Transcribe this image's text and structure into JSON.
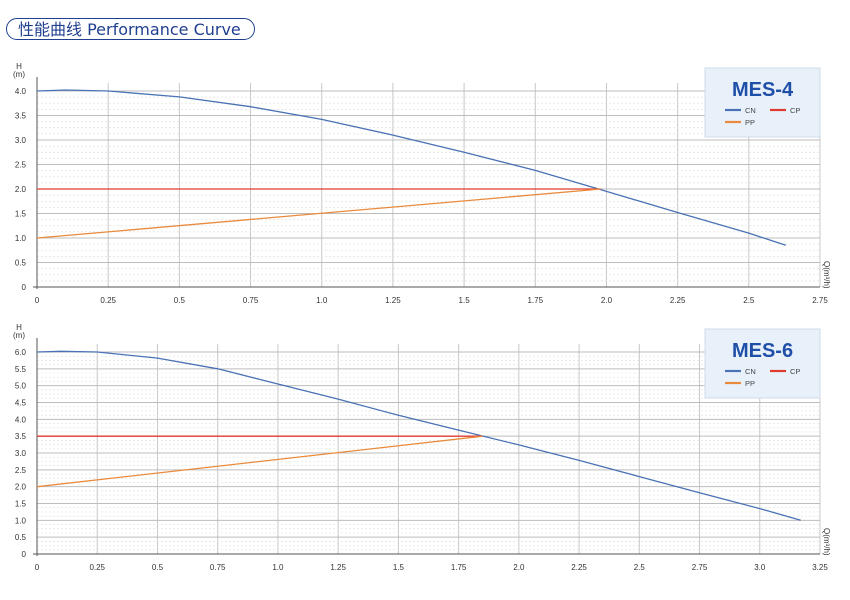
{
  "header": {
    "title": "性能曲线 Performance Curve"
  },
  "colors": {
    "cn": "#4a72b5",
    "cp": "#e03a2f",
    "pp": "#e98a3c",
    "legend_bg": "#e8f1fa",
    "title": "#1f4fa8",
    "border": "#1f3f8f"
  },
  "chart_data": [
    {
      "type": "line",
      "title": "MES-4",
      "ylabel": "H",
      "yunit": "(m)",
      "xlabel": "Q(m³/h)",
      "xlim": [
        0,
        2.75
      ],
      "ylim": [
        0,
        4.0
      ],
      "x_ticks": [
        "0",
        "0.25",
        "0.5",
        "0.75",
        "1.0",
        "1.25",
        "1.5",
        "1.75",
        "2.0",
        "2.25",
        "2.5",
        "2.75"
      ],
      "y_ticks": [
        "0",
        "0.5",
        "1.0",
        "1.5",
        "2.0",
        "2.5",
        "3.0",
        "3.5",
        "4.0"
      ],
      "grid": true,
      "legend_position": "top-right",
      "legend": [
        "CN",
        "CP",
        "PP"
      ],
      "series": [
        {
          "name": "CN",
          "x": [
            0,
            0.1,
            0.25,
            0.5,
            0.75,
            1.0,
            1.25,
            1.5,
            1.75,
            2.0,
            2.25,
            2.5,
            2.63
          ],
          "y": [
            4.0,
            4.02,
            4.0,
            3.88,
            3.68,
            3.42,
            3.1,
            2.75,
            2.38,
            1.95,
            1.52,
            1.1,
            0.85
          ]
        },
        {
          "name": "CP",
          "x": [
            0,
            1.98
          ],
          "y": [
            2.0,
            2.0
          ]
        },
        {
          "name": "PP",
          "x": [
            0,
            1.98
          ],
          "y": [
            1.0,
            2.0
          ]
        }
      ]
    },
    {
      "type": "line",
      "title": "MES-6",
      "ylabel": "H",
      "yunit": "(m)",
      "xlabel": "Q(m³/h)",
      "xlim": [
        0,
        3.25
      ],
      "ylim": [
        0,
        6.0
      ],
      "x_ticks": [
        "0",
        "0.25",
        "0.5",
        "0.75",
        "1.0",
        "1.25",
        "1.5",
        "1.75",
        "2.0",
        "2.25",
        "2.5",
        "2.75",
        "3.0",
        "3.25"
      ],
      "y_ticks": [
        "0",
        "0.5",
        "1.0",
        "1.5",
        "2.0",
        "2.5",
        "3.0",
        "3.5",
        "4.0",
        "4.5",
        "5.0",
        "5.5",
        "6.0"
      ],
      "grid": true,
      "legend_position": "top-right",
      "legend": [
        "CN",
        "CP",
        "PP"
      ],
      "series": [
        {
          "name": "CN",
          "x": [
            0,
            0.1,
            0.25,
            0.5,
            0.75,
            1.0,
            1.25,
            1.5,
            1.75,
            2.0,
            2.25,
            2.5,
            2.75,
            3.0,
            3.17
          ],
          "y": [
            6.0,
            6.02,
            6.0,
            5.82,
            5.5,
            5.05,
            4.6,
            4.12,
            3.68,
            3.24,
            2.78,
            2.3,
            1.82,
            1.35,
            1.0
          ]
        },
        {
          "name": "CP",
          "x": [
            0,
            1.85
          ],
          "y": [
            3.5,
            3.5
          ]
        },
        {
          "name": "PP",
          "x": [
            0,
            1.85
          ],
          "y": [
            2.0,
            3.5
          ]
        }
      ]
    }
  ]
}
